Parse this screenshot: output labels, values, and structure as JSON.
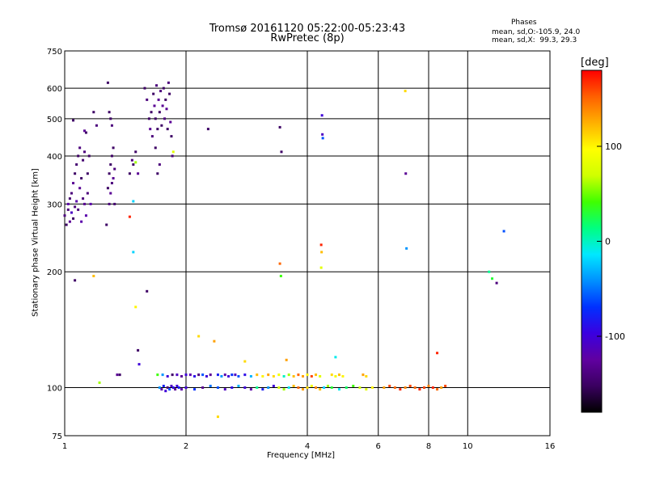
{
  "header": {
    "title_line1": "Tromsø 20161120 05:22:00-05:23:43",
    "title_line2": "RwPretec (8p)",
    "phases_title": "Phases",
    "phases_line1": "mean, sd,O:-105.9, 24.0",
    "phases_line2": "mean, sd,X:  99.3, 29.3"
  },
  "colorbar": {
    "label": "[deg]",
    "ticks": [
      {
        "value": 100,
        "label": "100"
      },
      {
        "value": 0,
        "label": "0"
      },
      {
        "value": -100,
        "label": "-100"
      }
    ],
    "colors": [
      "#000000",
      "#3a0060",
      "#6000a0",
      "#3a00e0",
      "#0030ff",
      "#0090ff",
      "#00e8ff",
      "#00ff80",
      "#40ff00",
      "#d0ff00",
      "#ffff00",
      "#ffb000",
      "#ff6000",
      "#ff0000"
    ]
  },
  "chart_data": {
    "type": "scatter",
    "title": "Tromsø 20161120 05:22:00-05:23:43",
    "subtitle": "RwPretec (8p)",
    "xlabel": "Frequency [MHz]",
    "ylabel": "Stationary phase Virtual Height [km]",
    "x_scale": "log",
    "y_scale": "log",
    "xlim": [
      1,
      16
    ],
    "ylim": [
      75,
      750
    ],
    "x_ticks": [
      1,
      2,
      4,
      6,
      8,
      10,
      16
    ],
    "x_tick_labels": [
      "1",
      "2",
      "4",
      "6",
      "8",
      "10",
      "16"
    ],
    "y_ticks": [
      75,
      100,
      200,
      300,
      400,
      500,
      600,
      750
    ],
    "y_tick_labels": [
      "75",
      "100",
      "200",
      "300",
      "400",
      "500",
      "600",
      "750"
    ],
    "grid": true,
    "color_scale": {
      "label": "[deg]",
      "min": -180,
      "max": 180
    },
    "series": [
      {
        "points": [
          [
            1.0,
            280,
            -140
          ],
          [
            1.01,
            265,
            -150
          ],
          [
            1.02,
            290,
            -140
          ],
          [
            1.02,
            300,
            -120
          ],
          [
            1.03,
            270,
            -130
          ],
          [
            1.03,
            310,
            -145
          ],
          [
            1.04,
            285,
            -110
          ],
          [
            1.04,
            320,
            -140
          ],
          [
            1.05,
            275,
            -150
          ],
          [
            1.05,
            340,
            -130
          ],
          [
            1.06,
            295,
            -140
          ],
          [
            1.06,
            360,
            -150
          ],
          [
            1.07,
            305,
            -120
          ],
          [
            1.07,
            380,
            -145
          ],
          [
            1.08,
            290,
            -140
          ],
          [
            1.08,
            400,
            -150
          ],
          [
            1.09,
            330,
            -130
          ],
          [
            1.09,
            420,
            -140
          ],
          [
            1.1,
            270,
            -120
          ],
          [
            1.1,
            350,
            -150
          ],
          [
            1.11,
            310,
            -140
          ],
          [
            1.11,
            390,
            -145
          ],
          [
            1.12,
            300,
            -130
          ],
          [
            1.12,
            410,
            -140
          ],
          [
            1.13,
            280,
            -120
          ],
          [
            1.13,
            460,
            -150
          ],
          [
            1.14,
            320,
            -140
          ],
          [
            1.15,
            400,
            -150
          ],
          [
            1.16,
            300,
            -120
          ],
          [
            1.18,
            520,
            -150
          ],
          [
            1.2,
            480,
            -140
          ],
          [
            1.05,
            495,
            -150
          ],
          [
            1.06,
            190,
            -150
          ],
          [
            1.12,
            465,
            -130
          ],
          [
            1.14,
            360,
            -150
          ],
          [
            1.28,
            330,
            -150
          ],
          [
            1.29,
            300,
            -140
          ],
          [
            1.29,
            360,
            -150
          ],
          [
            1.3,
            320,
            -130
          ],
          [
            1.3,
            380,
            -150
          ],
          [
            1.31,
            340,
            -140
          ],
          [
            1.31,
            400,
            -150
          ],
          [
            1.32,
            350,
            -130
          ],
          [
            1.32,
            420,
            -150
          ],
          [
            1.33,
            370,
            -140
          ],
          [
            1.33,
            300,
            -145
          ],
          [
            1.3,
            500,
            -150
          ],
          [
            1.31,
            480,
            -140
          ],
          [
            1.29,
            520,
            -150
          ],
          [
            1.28,
            620,
            -150
          ],
          [
            1.27,
            265,
            -150
          ],
          [
            1.45,
            360,
            -150
          ],
          [
            1.47,
            390,
            -140
          ],
          [
            1.48,
            380,
            -150
          ],
          [
            1.5,
            410,
            -150
          ],
          [
            1.52,
            360,
            -130
          ],
          [
            1.5,
            385,
            60
          ],
          [
            1.48,
            305,
            -20
          ],
          [
            1.58,
            600,
            -150
          ],
          [
            1.6,
            560,
            -140
          ],
          [
            1.62,
            500,
            -150
          ],
          [
            1.63,
            470,
            -130
          ],
          [
            1.64,
            520,
            -150
          ],
          [
            1.65,
            450,
            -140
          ],
          [
            1.66,
            580,
            -150
          ],
          [
            1.67,
            540,
            -130
          ],
          [
            1.68,
            500,
            -150
          ],
          [
            1.69,
            610,
            -140
          ],
          [
            1.7,
            470,
            -150
          ],
          [
            1.71,
            560,
            -130
          ],
          [
            1.72,
            520,
            -150
          ],
          [
            1.73,
            590,
            -140
          ],
          [
            1.74,
            480,
            -150
          ],
          [
            1.75,
            540,
            -130
          ],
          [
            1.76,
            600,
            -150
          ],
          [
            1.77,
            500,
            -140
          ],
          [
            1.78,
            560,
            -150
          ],
          [
            1.79,
            530,
            -130
          ],
          [
            1.8,
            470,
            -150
          ],
          [
            1.81,
            620,
            -140
          ],
          [
            1.82,
            580,
            -150
          ],
          [
            1.83,
            490,
            -130
          ],
          [
            1.84,
            450,
            -150
          ],
          [
            1.85,
            400,
            -140
          ],
          [
            1.86,
            410,
            80
          ],
          [
            1.7,
            360,
            -150
          ],
          [
            1.72,
            380,
            -140
          ],
          [
            1.68,
            420,
            -150
          ],
          [
            2.27,
            470,
            -150
          ],
          [
            3.42,
            475,
            -150
          ],
          [
            3.45,
            410,
            -150
          ],
          [
            4.35,
            510,
            -100
          ],
          [
            4.36,
            455,
            -110
          ],
          [
            4.37,
            445,
            -60
          ],
          [
            7.0,
            590,
            110
          ],
          [
            7.02,
            360,
            -130
          ],
          [
            7.05,
            230,
            -40
          ],
          [
            12.3,
            255,
            -60
          ],
          [
            4.33,
            235,
            170
          ],
          [
            4.34,
            225,
            120
          ],
          [
            4.33,
            205,
            80
          ],
          [
            3.42,
            210,
            150
          ],
          [
            3.44,
            195,
            40
          ],
          [
            11.3,
            200,
            10
          ],
          [
            11.5,
            192,
            30
          ],
          [
            11.8,
            187,
            -140
          ],
          [
            1.6,
            178,
            -150
          ],
          [
            1.48,
            225,
            -20
          ],
          [
            1.45,
            278,
            170
          ],
          [
            1.18,
            195,
            120
          ],
          [
            1.5,
            162,
            100
          ],
          [
            1.52,
            125,
            -150
          ],
          [
            1.53,
            115,
            -100
          ],
          [
            8.4,
            123,
            170
          ],
          [
            4.7,
            120,
            -10
          ],
          [
            2.15,
            136,
            110
          ],
          [
            2.35,
            132,
            130
          ],
          [
            2.8,
            117,
            110
          ],
          [
            3.55,
            118,
            130
          ],
          [
            2.4,
            84,
            110
          ],
          [
            1.22,
            103,
            60
          ],
          [
            1.35,
            108,
            -130
          ],
          [
            1.37,
            108,
            -150
          ],
          [
            1.7,
            108,
            40
          ],
          [
            1.75,
            108,
            -40
          ],
          [
            1.8,
            107,
            -100
          ],
          [
            1.85,
            108,
            -150
          ],
          [
            1.9,
            108,
            -110
          ],
          [
            1.95,
            107,
            -130
          ],
          [
            2.0,
            108,
            -100
          ],
          [
            2.05,
            108,
            -120
          ],
          [
            2.1,
            107,
            -90
          ],
          [
            2.15,
            108,
            -140
          ],
          [
            2.2,
            108,
            -60
          ],
          [
            2.25,
            107,
            -100
          ],
          [
            2.3,
            108,
            -130
          ],
          [
            2.4,
            108,
            -80
          ],
          [
            2.45,
            107,
            -40
          ],
          [
            2.5,
            108,
            -120
          ],
          [
            2.55,
            107,
            -100
          ],
          [
            2.6,
            108,
            -70
          ],
          [
            2.65,
            108,
            -110
          ],
          [
            2.7,
            107,
            -60
          ],
          [
            2.8,
            108,
            -90
          ],
          [
            2.9,
            107,
            -30
          ],
          [
            3.0,
            108,
            120
          ],
          [
            3.1,
            107,
            100
          ],
          [
            3.2,
            108,
            130
          ],
          [
            3.3,
            107,
            110
          ],
          [
            3.4,
            108,
            90
          ],
          [
            3.5,
            107,
            0
          ],
          [
            3.6,
            108,
            60
          ],
          [
            3.7,
            107,
            120
          ],
          [
            3.8,
            108,
            150
          ],
          [
            3.9,
            107,
            130
          ],
          [
            4.0,
            108,
            100
          ],
          [
            4.1,
            107,
            160
          ],
          [
            4.2,
            108,
            120
          ],
          [
            4.3,
            107,
            80
          ],
          [
            4.6,
            108,
            110
          ],
          [
            4.7,
            107,
            90
          ],
          [
            4.8,
            108,
            120
          ],
          [
            4.9,
            107,
            100
          ],
          [
            5.5,
            108,
            130
          ],
          [
            5.6,
            107,
            110
          ],
          [
            1.72,
            100,
            -40
          ],
          [
            1.74,
            99,
            -120
          ],
          [
            1.76,
            101,
            -80
          ],
          [
            1.78,
            98,
            -100
          ],
          [
            1.8,
            100,
            -140
          ],
          [
            1.82,
            99,
            -60
          ],
          [
            1.84,
            101,
            -110
          ],
          [
            1.86,
            100,
            -90
          ],
          [
            1.88,
            99,
            -130
          ],
          [
            1.9,
            101,
            -100
          ],
          [
            1.92,
            100,
            -80
          ],
          [
            1.95,
            99,
            -120
          ],
          [
            2.0,
            100,
            -100
          ],
          [
            2.1,
            99,
            -70
          ],
          [
            2.2,
            100,
            -130
          ],
          [
            2.3,
            101,
            -50
          ],
          [
            2.4,
            100,
            -60
          ],
          [
            2.5,
            99,
            -110
          ],
          [
            2.6,
            100,
            -90
          ],
          [
            2.7,
            101,
            -30
          ],
          [
            2.8,
            100,
            -100
          ],
          [
            2.9,
            99,
            -120
          ],
          [
            3.0,
            100,
            10
          ],
          [
            3.1,
            99,
            -80
          ],
          [
            3.2,
            100,
            -40
          ],
          [
            3.3,
            101,
            -100
          ],
          [
            3.4,
            100,
            80
          ],
          [
            3.5,
            99,
            60
          ],
          [
            3.6,
            100,
            -10
          ],
          [
            3.7,
            101,
            120
          ],
          [
            3.8,
            100,
            150
          ],
          [
            3.9,
            99,
            130
          ],
          [
            4.0,
            100,
            110
          ],
          [
            4.1,
            101,
            90
          ],
          [
            4.2,
            100,
            140
          ],
          [
            4.3,
            99,
            120
          ],
          [
            4.4,
            100,
            -20
          ],
          [
            4.5,
            101,
            60
          ],
          [
            4.6,
            100,
            30
          ],
          [
            4.8,
            99,
            -10
          ],
          [
            5.0,
            100,
            20
          ],
          [
            5.2,
            101,
            40
          ],
          [
            5.4,
            100,
            70
          ],
          [
            5.6,
            99,
            80
          ],
          [
            5.8,
            100,
            100
          ],
          [
            6.2,
            100,
            130
          ],
          [
            6.4,
            101,
            160
          ],
          [
            6.6,
            100,
            150
          ],
          [
            6.8,
            99,
            170
          ],
          [
            7.0,
            100,
            140
          ],
          [
            7.2,
            101,
            160
          ],
          [
            7.4,
            100,
            150
          ],
          [
            7.6,
            99,
            170
          ],
          [
            7.8,
            100,
            160
          ],
          [
            8.0,
            101,
            140
          ],
          [
            8.2,
            100,
            170
          ],
          [
            8.4,
            99,
            150
          ],
          [
            8.6,
            100,
            130
          ],
          [
            8.8,
            101,
            160
          ]
        ]
      }
    ]
  }
}
